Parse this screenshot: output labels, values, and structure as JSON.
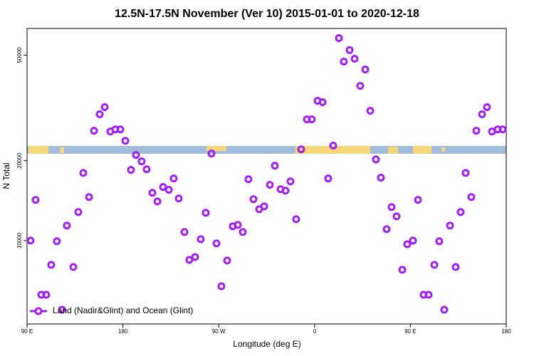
{
  "chart_data": {
    "type": "scatter",
    "title": "12.5N-17.5N November (Ver 10)   2015-01-01 to 2020-12-18",
    "xlabel": "Longitude (deg E)",
    "ylabel": "N Total",
    "ylog": true,
    "legend": "bottom-left",
    "xlim": [
      90,
      540
    ],
    "xticks": [
      {
        "value": 90,
        "label": "90 E"
      },
      {
        "value": 180,
        "label": "180"
      },
      {
        "value": 270,
        "label": "90 W"
      },
      {
        "value": 360,
        "label": "0"
      },
      {
        "value": 450,
        "label": "90 E"
      },
      {
        "value": 540,
        "label": "180"
      }
    ],
    "ylim": [
      4850,
      63000
    ],
    "yticks": [
      10000,
      20000,
      50000
    ],
    "series": [
      {
        "name": "Land (Nadir&Glint) and Ocean (Glint)",
        "color": "#a020f0",
        "x": [
          93.3,
          98,
          103.4,
          108,
          112.7,
          118,
          122.8,
          127.4,
          133.5,
          138.1,
          142.8,
          148.2,
          152.9,
          158.2,
          162.9,
          168.2,
          172.9,
          177.6,
          182.3,
          187.6,
          192.3,
          197.6,
          202.3,
          207.7,
          212.4,
          217.7,
          223.1,
          227.7,
          232.4,
          237.8,
          242.4,
          247.8,
          253.1,
          257.8,
          263.2,
          267.9,
          272.5,
          277.9,
          283.2,
          287.9,
          292.6,
          297.9,
          302.6,
          308,
          312.7,
          318,
          322.7,
          328.1,
          332.7,
          337.4,
          342.7,
          347.4,
          352.8,
          357.4,
          362.8,
          367.5,
          372.8,
          377.5,
          382.9,
          387.5,
          392.9,
          397.6,
          402.9,
          407.6,
          412.3,
          417.6,
          422.3,
          427.7,
          432.3,
          437,
          442.4,
          447,
          452.4,
          457.1,
          462.4,
          467.1,
          472.5,
          477.1,
          481.8,
          487.2,
          492.5,
          497.2,
          501.9,
          507.2,
          511.9,
          517.3,
          521.9,
          526.6,
          532,
          536.6
        ],
        "values": [
          10000,
          14230,
          6250,
          6250,
          8100,
          9940,
          5490,
          11390,
          7950,
          12810,
          17990,
          14590,
          25940,
          29920,
          31830,
          25770,
          26240,
          26240,
          23770,
          18460,
          21020,
          19880,
          18570,
          15140,
          14050,
          15920,
          15530,
          17140,
          14410,
          10770,
          8460,
          8670,
          10120,
          12730,
          21280,
          9760,
          6730,
          8410,
          11320,
          11460,
          10770,
          17030,
          14320,
          13130,
          13460,
          16220,
          19150,
          15620,
          15430,
          16710,
          12040,
          22080,
          28630,
          28630,
          33640,
          33240,
          17140,
          22800,
          57960,
          47270,
          52240,
          48460,
          38280,
          44130,
          30840,
          20220,
          17260,
          11040,
          13370,
          12340,
          7760,
          9690,
          10000,
          14230,
          6250,
          6250,
          8100,
          9940,
          5490,
          11390,
          7950,
          12810,
          17990,
          14590,
          25940,
          29920,
          31830,
          25770,
          26240,
          26240
        ]
      }
    ]
  }
}
